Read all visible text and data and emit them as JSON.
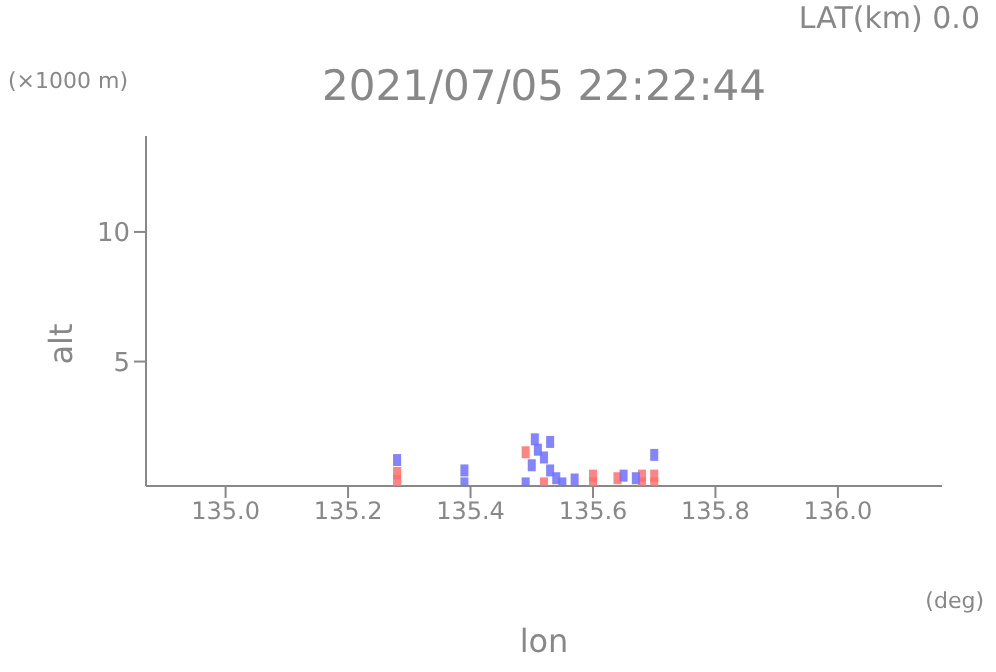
{
  "chart_data": {
    "type": "scatter",
    "title": "2021/07/05 22:22:44",
    "xlabel": "lon",
    "ylabel": "alt",
    "annotations": [
      "LAT(km) 0.0",
      "(×1000 m)",
      "(deg)"
    ],
    "xlim": [
      134.87,
      136.17
    ],
    "xticks": [
      {
        "value": 135.0,
        "label": "135.0"
      },
      {
        "value": 135.2,
        "label": "135.2"
      },
      135.4,
      135.6,
      135.8,
      {
        "value": 136.0,
        "label": "136.0"
      }
    ],
    "ylim": [
      0.2,
      13.7
    ],
    "yticks": [
      5,
      10
    ],
    "grid": false,
    "legend": false,
    "marker": "square",
    "series": [
      {
        "color": "#ff6f6f",
        "x": [
          135.28,
          135.28,
          135.49,
          135.52,
          135.6,
          135.6,
          135.64,
          135.68,
          135.68,
          135.7,
          135.7
        ],
        "values": [
          0.4,
          0.7,
          1.5,
          0.3,
          0.3,
          0.6,
          0.5,
          0.3,
          0.6,
          0.3,
          0.6
        ]
      },
      {
        "color": "#6f6fff",
        "x": [
          135.28,
          135.39,
          135.39,
          135.49,
          135.5,
          135.51,
          135.505,
          135.52,
          135.53,
          135.53,
          135.54,
          135.55,
          135.57,
          135.65,
          135.67,
          135.7
        ],
        "values": [
          1.2,
          0.3,
          0.8,
          0.3,
          1.0,
          1.6,
          2.0,
          1.3,
          0.8,
          1.9,
          0.5,
          0.3,
          0.45,
          0.6,
          0.5,
          1.4
        ]
      }
    ]
  }
}
